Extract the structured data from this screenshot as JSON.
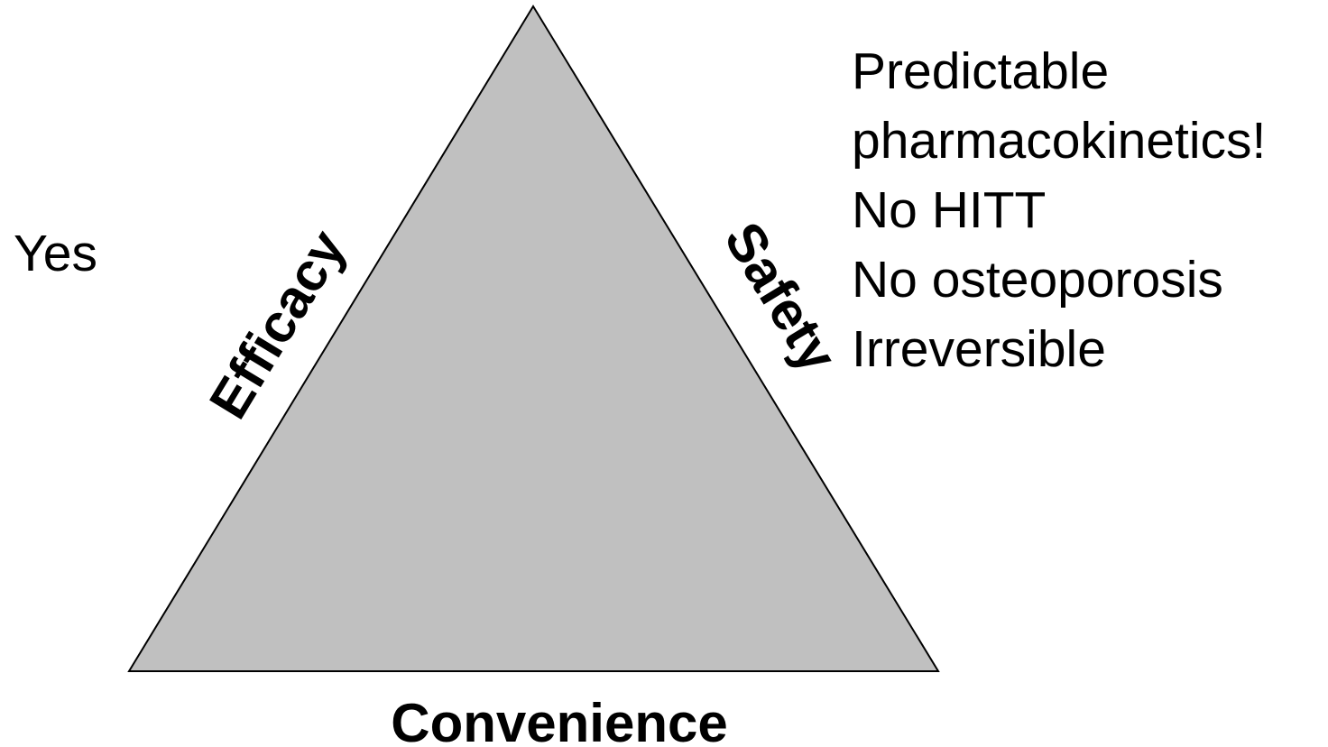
{
  "left_note": "Yes",
  "sides": {
    "left": "Efficacy",
    "right": "Safety",
    "bottom": "Convenience"
  },
  "right_notes": [
    "Predictable",
    "pharmacokinetics!",
    "No HITT",
    "No osteoporosis",
    "Irreversible"
  ]
}
